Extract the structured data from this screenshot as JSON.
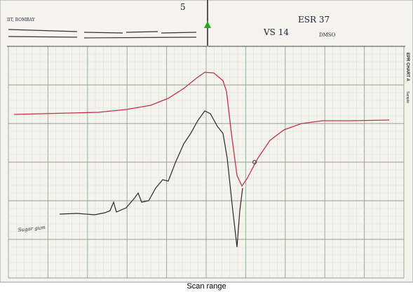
{
  "header": {
    "lab": "IIT, BOMBAY",
    "gain": "5",
    "run": "ESR 37",
    "sweep": "VS 14",
    "solvent": "DMSO"
  },
  "side": {
    "chart": "EPR CHART A",
    "sample": "Sample"
  },
  "note": "Sugar gum",
  "caption": "Scan range"
}
